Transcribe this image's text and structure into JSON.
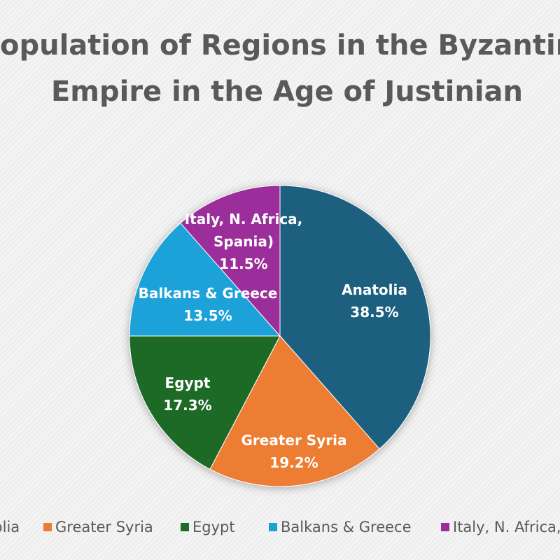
{
  "chart_data": {
    "type": "pie",
    "title": "Population of Regions in the Byzantine Empire in the Age of Justinian",
    "categories": [
      "Anatolia",
      "Greater Syria",
      "Egypt",
      "Balkans & Greece",
      "Italy, N. Africa, Spania)"
    ],
    "values": [
      38.5,
      19.2,
      17.3,
      13.5,
      11.5
    ],
    "value_labels": [
      "38.5%",
      "19.2%",
      "17.3%",
      "13.5%",
      "11.5%"
    ],
    "colors": [
      "#1b5e7e",
      "#ed7d31",
      "#1e6b25",
      "#1aa1d8",
      "#9b2e9b"
    ],
    "legend": "bottom"
  }
}
